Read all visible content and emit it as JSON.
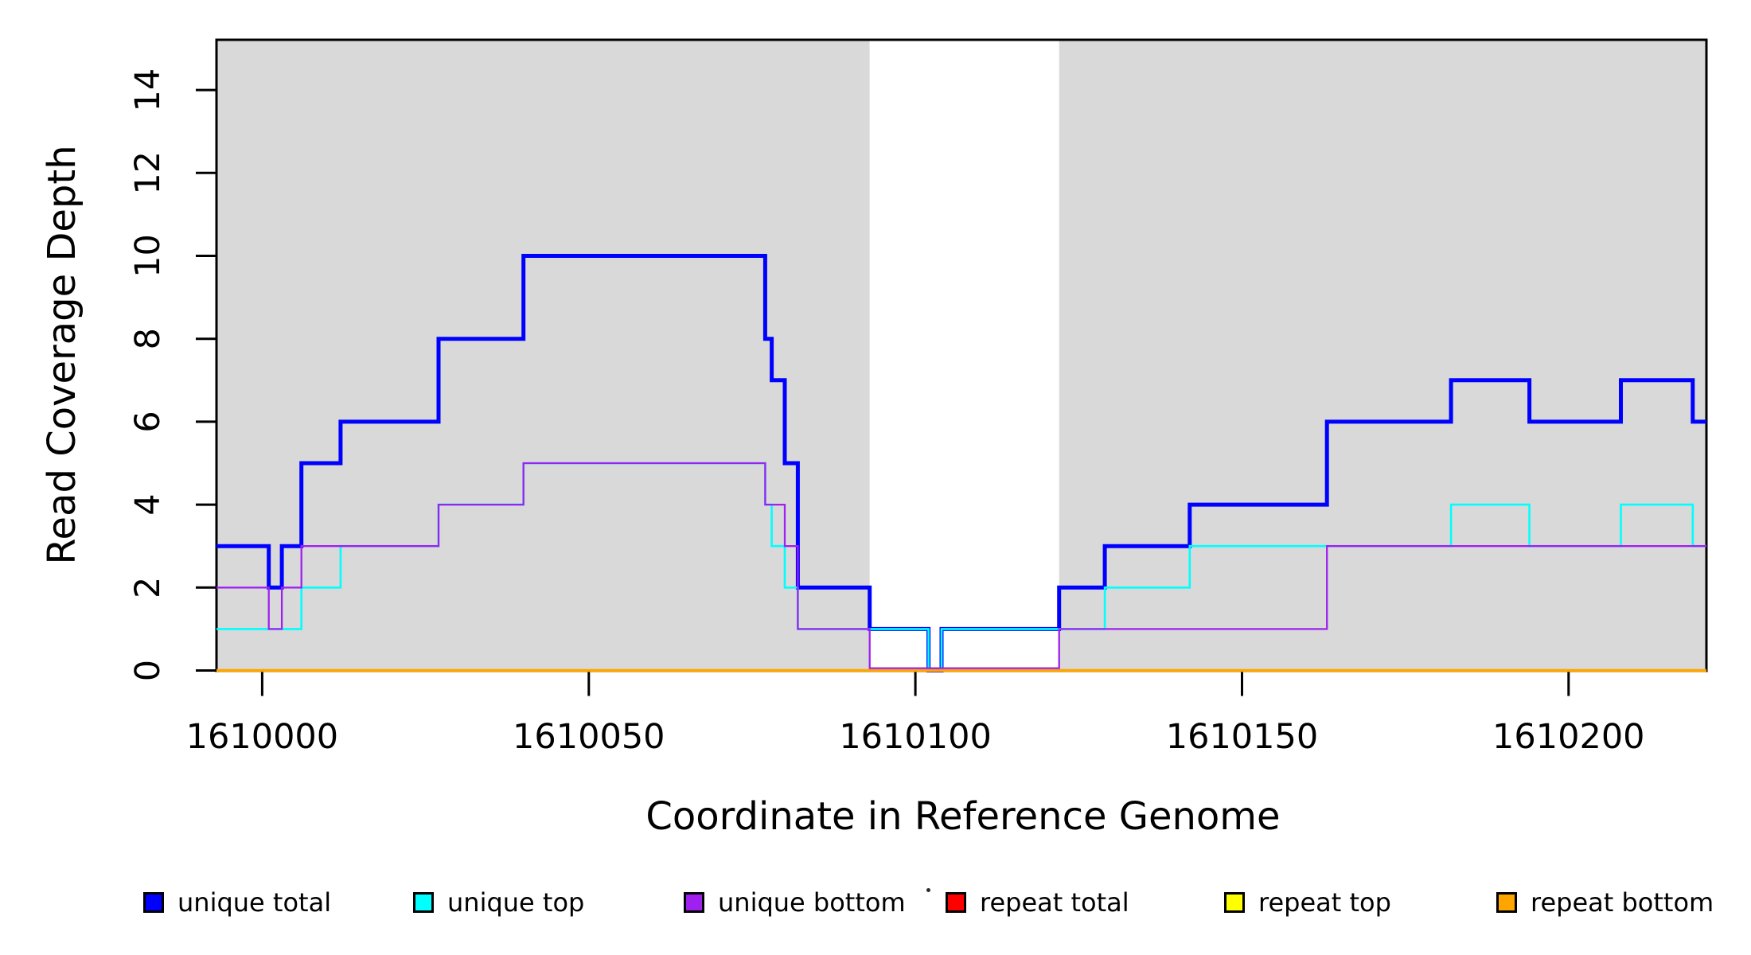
{
  "figure": {
    "background": "#ffffff",
    "title": ""
  },
  "chart_data": {
    "type": "line",
    "subtype": "step",
    "title": "",
    "xlabel": "Coordinate in Reference Genome",
    "ylabel": "Read Coverage Depth",
    "xlim": [
      1609993,
      1610221.1
    ],
    "ylim": [
      0,
      15.2
    ],
    "grid": false,
    "legend_position": "bottom",
    "x_ticks": [
      1610000,
      1610050,
      1610100,
      1610150,
      1610200
    ],
    "y_ticks": [
      0,
      2,
      4,
      6,
      8,
      10,
      12,
      14
    ],
    "panel_color": "#d9d9d9",
    "highlight_band": {
      "from": 1610093,
      "to": 1610122,
      "color": "#ffffff"
    },
    "series": [
      {
        "id": "unique-total",
        "name": "unique total",
        "color": "#0000ff",
        "lwd": 5,
        "start_value": 3,
        "steps": [
          [
            1610001,
            2
          ],
          [
            1610003,
            3
          ],
          [
            1610006,
            5
          ],
          [
            1610012,
            6
          ],
          [
            1610027,
            8
          ],
          [
            1610040,
            10
          ],
          [
            1610077,
            8
          ],
          [
            1610078,
            7
          ],
          [
            1610080,
            5
          ],
          [
            1610082,
            2
          ],
          [
            1610093,
            1
          ],
          [
            1610102,
            0
          ],
          [
            1610104,
            1
          ],
          [
            1610122,
            2
          ],
          [
            1610129,
            3
          ],
          [
            1610142,
            4
          ],
          [
            1610163,
            6
          ],
          [
            1610182,
            7
          ],
          [
            1610194,
            6
          ],
          [
            1610208,
            7
          ],
          [
            1610219,
            6
          ]
        ]
      },
      {
        "id": "unique-top",
        "name": "unique top",
        "color": "#00ffff",
        "lwd": 2.6,
        "start_value": 1,
        "steps": [
          [
            1610006,
            2
          ],
          [
            1610012,
            3
          ],
          [
            1610027,
            4
          ],
          [
            1610040,
            5
          ],
          [
            1610077,
            4
          ],
          [
            1610078,
            3
          ],
          [
            1610080,
            2
          ],
          [
            1610082,
            1
          ],
          [
            1610102,
            0
          ],
          [
            1610104,
            1
          ],
          [
            1610129,
            2
          ],
          [
            1610142,
            3
          ],
          [
            1610182,
            4
          ],
          [
            1610194,
            3
          ],
          [
            1610208,
            4
          ],
          [
            1610219,
            3
          ]
        ]
      },
      {
        "id": "unique-bottom",
        "name": "unique bottom",
        "color": "#a020f0",
        "lwd": 2.3,
        "start_value": 2,
        "steps": [
          [
            1610001,
            1
          ],
          [
            1610003,
            2
          ],
          [
            1610006,
            3
          ],
          [
            1610027,
            4
          ],
          [
            1610040,
            5
          ],
          [
            1610077,
            4
          ],
          [
            1610080,
            3
          ],
          [
            1610082,
            1
          ],
          [
            1610093,
            0
          ],
          [
            1610122,
            1
          ],
          [
            1610163,
            3
          ]
        ]
      },
      {
        "id": "repeat-total",
        "name": "repeat total",
        "color": "#ff0000",
        "lwd": 2.3,
        "start_value": 0,
        "steps": []
      },
      {
        "id": "repeat-top",
        "name": "repeat top",
        "color": "#ffff00",
        "lwd": 2.3,
        "start_value": 0,
        "steps": []
      },
      {
        "id": "repeat-bottom",
        "name": "repeat bottom",
        "color": "#ffa500",
        "lwd": 3.8,
        "start_value": 0,
        "steps": []
      }
    ]
  },
  "legend": {
    "entries": [
      {
        "label": "unique total",
        "color": "#0000ff"
      },
      {
        "label": "unique top",
        "color": "#00ffff"
      },
      {
        "label": "unique bottom",
        "color": "#a020f0"
      },
      {
        "label": "repeat total",
        "color": "#ff0000"
      },
      {
        "label": "repeat top",
        "color": "#ffff00"
      },
      {
        "label": "repeat bottom",
        "color": "#ffa500"
      }
    ]
  }
}
